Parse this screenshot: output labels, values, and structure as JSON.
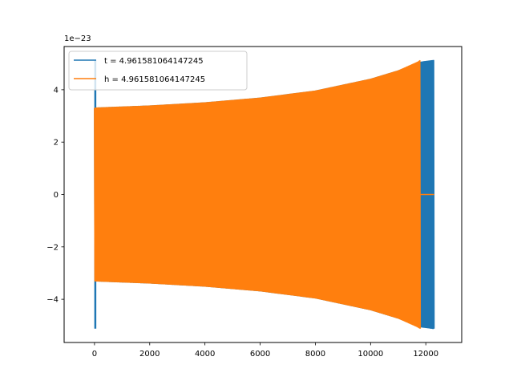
{
  "chart_data": {
    "type": "line",
    "title": "",
    "xlabel": "",
    "ylabel": "",
    "y_offset_label": "1e−23",
    "xlim": [
      -1100,
      13300
    ],
    "ylim": [
      -5.65,
      5.65
    ],
    "x_ticks": [
      0,
      2000,
      4000,
      6000,
      8000,
      10000,
      12000
    ],
    "x_tick_labels": [
      "0",
      "2000",
      "4000",
      "6000",
      "8000",
      "10000",
      "12000"
    ],
    "y_ticks": [
      -4,
      -2,
      0,
      2,
      4
    ],
    "y_tick_labels": [
      "−4",
      "−2",
      "0",
      "2",
      "4"
    ],
    "grid": false,
    "legend_position": "upper-left",
    "series": [
      {
        "name": "t = 4.961581064147245",
        "color": "#1f77b4",
        "style": "dense-oscillation",
        "initial_spike": {
          "x": 0,
          "ymin": -5.12,
          "ymax": 5.12
        },
        "envelope": [
          {
            "x": 0,
            "amp": 3.3
          },
          {
            "x": 2000,
            "amp": 3.38
          },
          {
            "x": 4000,
            "amp": 3.5
          },
          {
            "x": 6000,
            "amp": 3.68
          },
          {
            "x": 8000,
            "amp": 3.95
          },
          {
            "x": 10000,
            "amp": 4.4
          },
          {
            "x": 11000,
            "amp": 4.72
          },
          {
            "x": 11800,
            "amp": 5.05
          },
          {
            "x": 12000,
            "amp": 5.08
          },
          {
            "x": 12300,
            "amp": 5.12
          }
        ],
        "x_end": 12300
      },
      {
        "name": "h = 4.961581064147245",
        "color": "#ff7f0e",
        "style": "dense-oscillation",
        "envelope": [
          {
            "x": 0,
            "amp": 3.3
          },
          {
            "x": 2000,
            "amp": 3.38
          },
          {
            "x": 4000,
            "amp": 3.5
          },
          {
            "x": 6000,
            "amp": 3.68
          },
          {
            "x": 8000,
            "amp": 3.95
          },
          {
            "x": 10000,
            "amp": 4.4
          },
          {
            "x": 11000,
            "amp": 4.72
          },
          {
            "x": 11700,
            "amp": 5.05
          },
          {
            "x": 11800,
            "amp": 5.12
          }
        ],
        "x_end": 11800,
        "tail": {
          "x_start": 11800,
          "x_end": 12300,
          "y": 0
        }
      }
    ]
  }
}
